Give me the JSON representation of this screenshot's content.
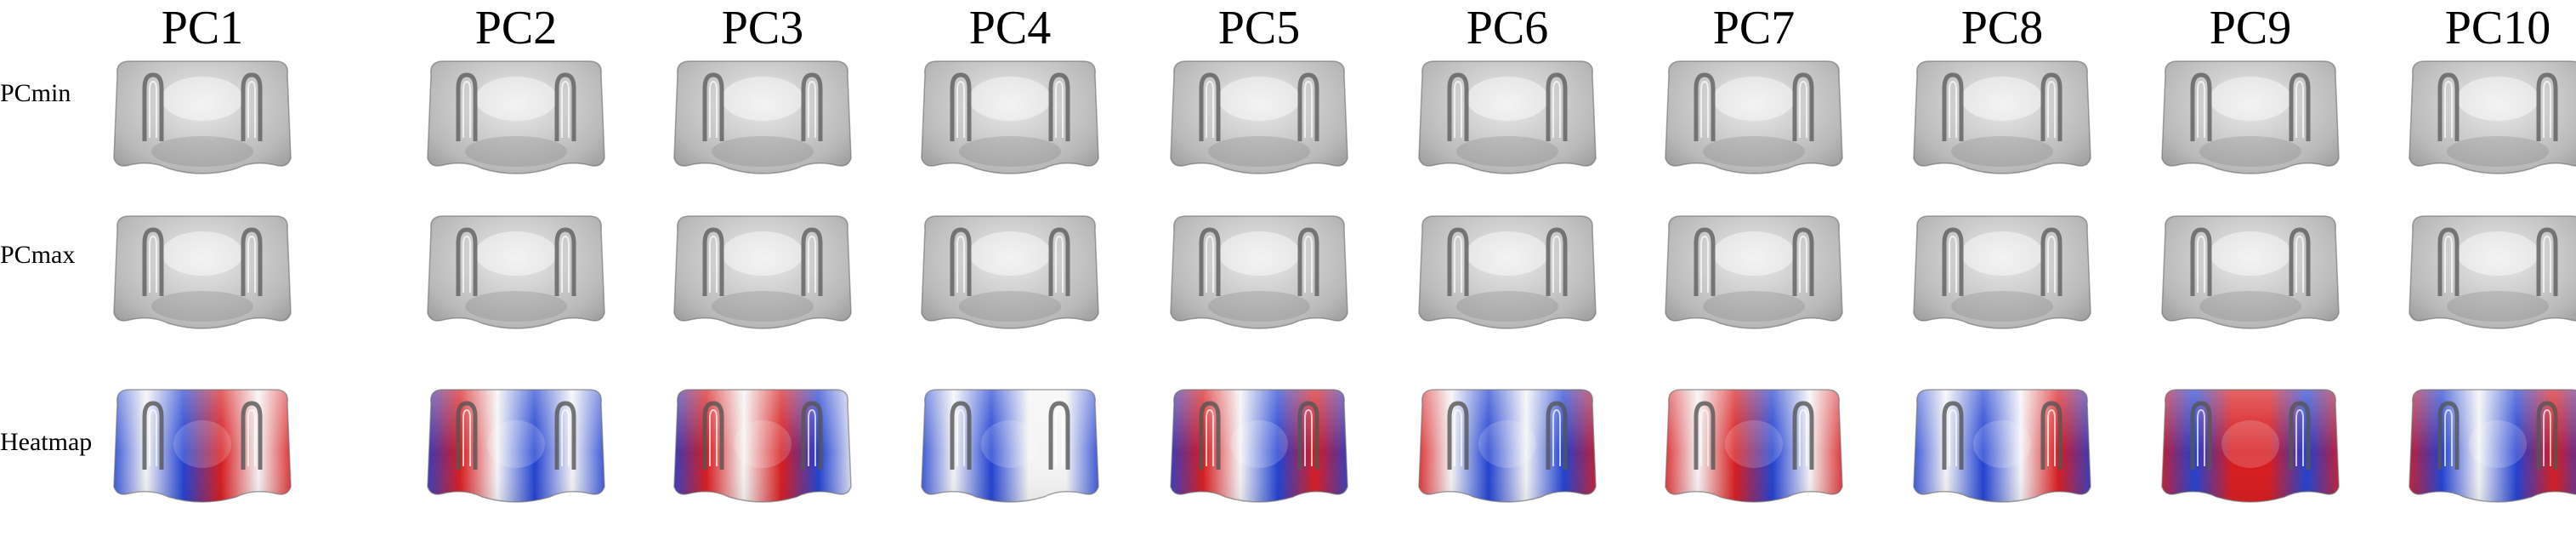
{
  "columns": [
    "PC1",
    "PC2",
    "PC3",
    "PC4",
    "PC5",
    "PC6",
    "PC7",
    "PC8",
    "PC9",
    "PC10"
  ],
  "rows": [
    {
      "key": "min",
      "label": "PCmin"
    },
    {
      "key": "max",
      "label": "PCmax"
    },
    {
      "key": "heat",
      "label": "Heatmap"
    }
  ],
  "colors": {
    "surface_light": "#e9e9e9",
    "surface_mid": "#b9b9b9",
    "surface_dark": "#8a8a8a",
    "heat_red": "#d7191c",
    "heat_blue": "#1f3fd0",
    "heat_white": "#f4f4f4"
  },
  "heatmap_patterns": [
    [
      "blue",
      "white",
      "blue",
      "red",
      "white",
      "red"
    ],
    [
      "blue",
      "red",
      "white",
      "blue",
      "white",
      "blue"
    ],
    [
      "blue",
      "red",
      "white",
      "red",
      "blue",
      "white"
    ],
    [
      "blue",
      "white",
      "blue",
      "white",
      "white",
      "blue"
    ],
    [
      "blue",
      "red",
      "white",
      "blue",
      "red",
      "blue"
    ],
    [
      "red",
      "white",
      "blue",
      "white",
      "blue",
      "red"
    ],
    [
      "red",
      "white",
      "red",
      "blue",
      "white",
      "red"
    ],
    [
      "blue",
      "white",
      "blue",
      "white",
      "red",
      "blue"
    ],
    [
      "red",
      "blue",
      "red",
      "red",
      "blue",
      "red"
    ],
    [
      "red",
      "blue",
      "white",
      "blue",
      "red",
      "blue"
    ]
  ]
}
